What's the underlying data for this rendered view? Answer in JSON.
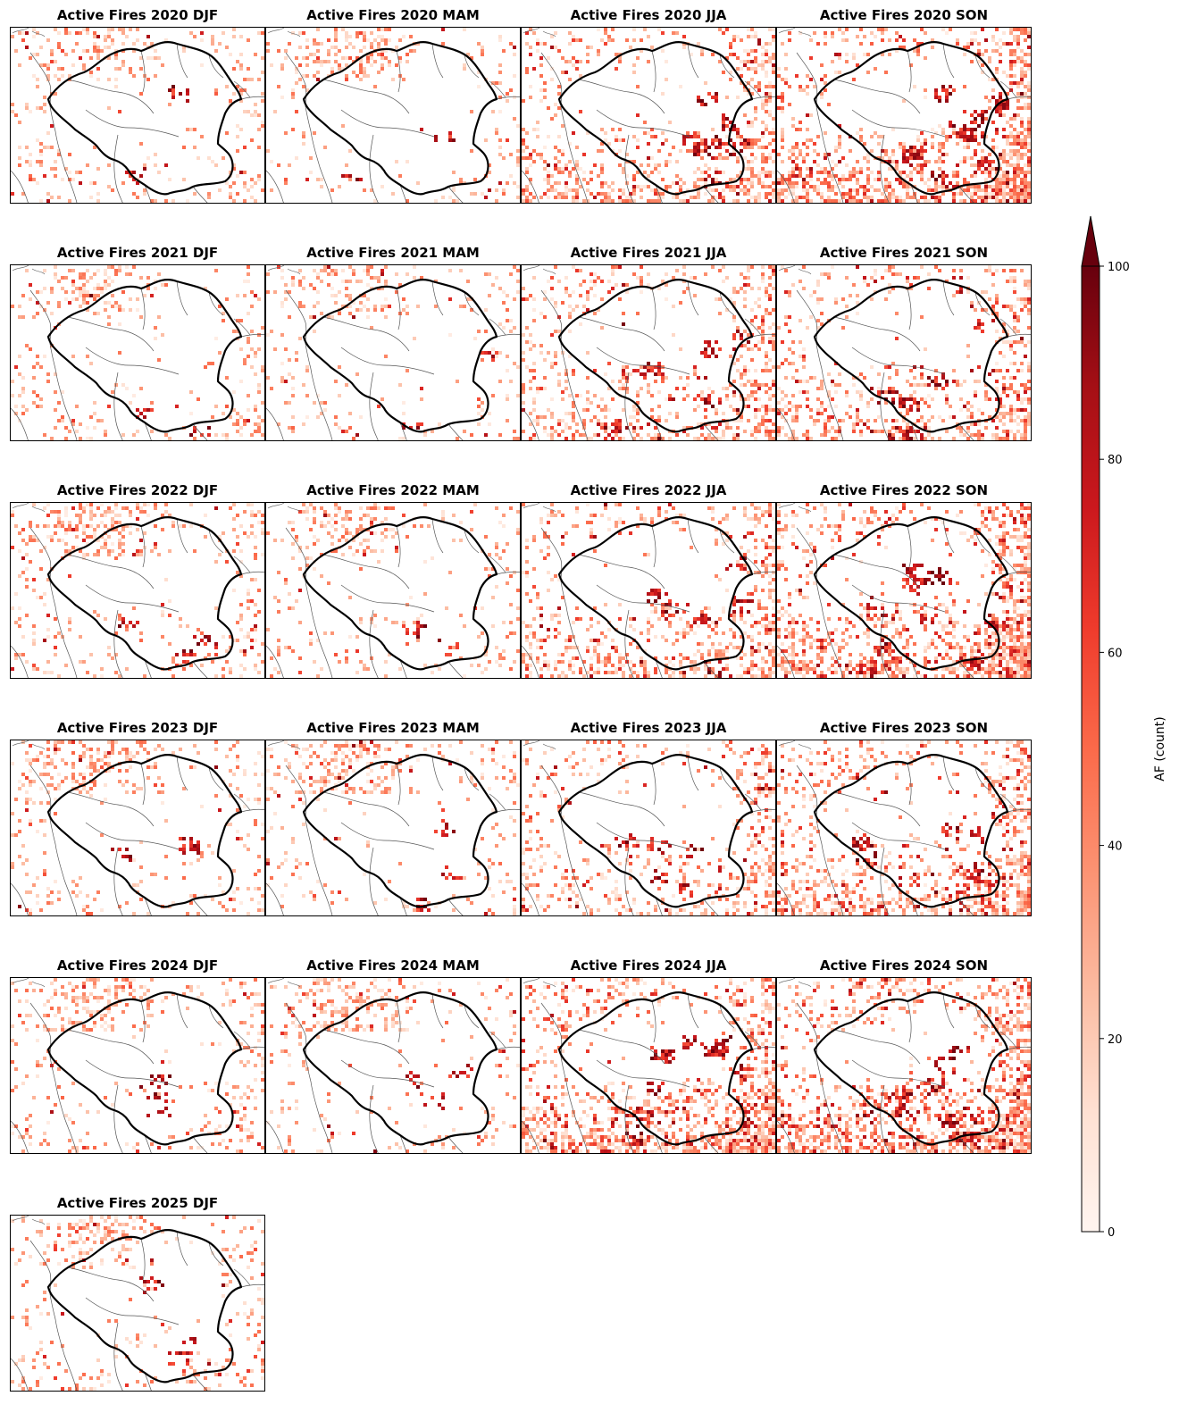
{
  "figure": {
    "type": "map-grid",
    "colormap": "Reds",
    "colormap_stops": [
      "#fff5f0",
      "#fee0d2",
      "#fcbba1",
      "#fc9272",
      "#fb6a4a",
      "#ef3b2c",
      "#cb181d",
      "#a50f15",
      "#67000d"
    ],
    "layers": [
      "Active Fires count (AF)",
      "Amazon basin boundary",
      "country borders",
      "coastline"
    ]
  },
  "panels": [
    {
      "title": "Active Fires 2020 DJF",
      "season": "DJF",
      "intensity": 0.25,
      "north": 0.7,
      "south": 0.15,
      "east": 0.3
    },
    {
      "title": "Active Fires 2020 MAM",
      "season": "MAM",
      "intensity": 0.25,
      "north": 0.9,
      "south": 0.05,
      "east": 0.15
    },
    {
      "title": "Active Fires 2020 JJA",
      "season": "JJA",
      "intensity": 0.75,
      "north": 0.1,
      "south": 0.8,
      "east": 0.5
    },
    {
      "title": "Active Fires 2020 SON",
      "season": "SON",
      "intensity": 1.0,
      "north": 0.1,
      "south": 1.0,
      "east": 0.9
    },
    {
      "title": "Active Fires 2021 DJF",
      "season": "DJF",
      "intensity": 0.25,
      "north": 0.7,
      "south": 0.15,
      "east": 0.3
    },
    {
      "title": "Active Fires 2021 MAM",
      "season": "MAM",
      "intensity": 0.25,
      "north": 0.8,
      "south": 0.05,
      "east": 0.15
    },
    {
      "title": "Active Fires 2021 JJA",
      "season": "JJA",
      "intensity": 0.7,
      "north": 0.1,
      "south": 0.7,
      "east": 0.6
    },
    {
      "title": "Active Fires 2021 SON",
      "season": "SON",
      "intensity": 0.7,
      "north": 0.1,
      "south": 0.7,
      "east": 0.6
    },
    {
      "title": "Active Fires 2022 DJF",
      "season": "DJF",
      "intensity": 0.35,
      "north": 1.0,
      "south": 0.2,
      "east": 0.3
    },
    {
      "title": "Active Fires 2022 MAM",
      "season": "MAM",
      "intensity": 0.3,
      "north": 0.7,
      "south": 0.2,
      "east": 0.2
    },
    {
      "title": "Active Fires 2022 JJA",
      "season": "JJA",
      "intensity": 0.7,
      "north": 0.1,
      "south": 0.7,
      "east": 0.5
    },
    {
      "title": "Active Fires 2022 SON",
      "season": "SON",
      "intensity": 1.0,
      "north": 0.1,
      "south": 0.9,
      "east": 1.0
    },
    {
      "title": "Active Fires 2023 DJF",
      "season": "DJF",
      "intensity": 0.3,
      "north": 0.9,
      "south": 0.15,
      "east": 0.3
    },
    {
      "title": "Active Fires 2023 MAM",
      "season": "MAM",
      "intensity": 0.3,
      "north": 1.0,
      "south": 0.05,
      "east": 0.15
    },
    {
      "title": "Active Fires 2023 JJA",
      "season": "JJA",
      "intensity": 0.55,
      "north": 0.1,
      "south": 0.5,
      "east": 0.6
    },
    {
      "title": "Active Fires 2023 SON",
      "season": "SON",
      "intensity": 0.85,
      "north": 0.2,
      "south": 0.9,
      "east": 0.8
    },
    {
      "title": "Active Fires 2024 DJF",
      "season": "DJF",
      "intensity": 0.35,
      "north": 1.0,
      "south": 0.2,
      "east": 0.3
    },
    {
      "title": "Active Fires 2024 MAM",
      "season": "MAM",
      "intensity": 0.3,
      "north": 1.0,
      "south": 0.05,
      "east": 0.15
    },
    {
      "title": "Active Fires 2024 JJA",
      "season": "JJA",
      "intensity": 0.95,
      "north": 0.15,
      "south": 1.0,
      "east": 0.7
    },
    {
      "title": "Active Fires 2024 SON",
      "season": "SON",
      "intensity": 1.0,
      "north": 0.3,
      "south": 1.0,
      "east": 0.9
    },
    {
      "title": "Active Fires 2025 DJF",
      "season": "DJF",
      "intensity": 0.3,
      "north": 0.8,
      "south": 0.15,
      "east": 0.3
    }
  ],
  "colorbar": {
    "label": "AF (count)",
    "min": 0,
    "max": 100,
    "ticks": [
      0,
      20,
      40,
      60,
      80,
      100
    ],
    "extend": "max"
  }
}
